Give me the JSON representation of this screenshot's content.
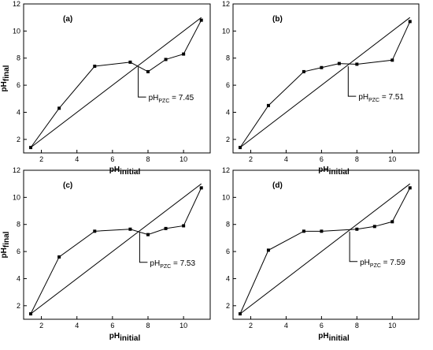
{
  "chart_data": [
    {
      "type": "line",
      "panel_label": "(a)",
      "xlabel": "pH",
      "xlabel_sub": "initial",
      "ylabel": "pH",
      "ylabel_sub": "final",
      "xlim": [
        1,
        11.5
      ],
      "ylim": [
        1,
        12
      ],
      "xticks": [
        "2",
        "4",
        "6",
        "8",
        "10"
      ],
      "yticks": [
        "2",
        "4",
        "6",
        "8",
        "10",
        "12"
      ],
      "series": [
        {
          "x": [
            1.4,
            3.0,
            5.0,
            7.0,
            8.0,
            9.0,
            10.0,
            11.0
          ],
          "y": [
            1.4,
            4.3,
            7.4,
            7.7,
            7.0,
            7.9,
            8.3,
            10.8
          ]
        }
      ],
      "reference_line": {
        "x": [
          1.4,
          11.0
        ],
        "y": [
          1.4,
          11.0
        ]
      },
      "annotation": {
        "prefix": "pH",
        "sub": "PZC",
        "suffix": " = 7.45",
        "x": 7.45,
        "y": 7.45
      }
    },
    {
      "type": "line",
      "panel_label": "(b)",
      "xlabel": "pH",
      "xlabel_sub": "initial",
      "ylabel": "",
      "ylabel_sub": "",
      "xlim": [
        1,
        11.5
      ],
      "ylim": [
        1,
        12
      ],
      "xticks": [
        "2",
        "4",
        "6",
        "8",
        "10"
      ],
      "yticks": [
        "2",
        "4",
        "6",
        "8",
        "10",
        "12"
      ],
      "series": [
        {
          "x": [
            1.4,
            3.0,
            5.0,
            6.0,
            7.0,
            8.0,
            10.0,
            11.0
          ],
          "y": [
            1.4,
            4.5,
            7.0,
            7.3,
            7.6,
            7.55,
            7.85,
            10.7
          ]
        }
      ],
      "reference_line": {
        "x": [
          1.4,
          11.0
        ],
        "y": [
          1.4,
          11.0
        ]
      },
      "annotation": {
        "prefix": "pH",
        "sub": "PZC",
        "suffix": " = 7.51",
        "x": 7.51,
        "y": 7.51
      }
    },
    {
      "type": "line",
      "panel_label": "(c)",
      "xlabel": "pH",
      "xlabel_sub": "initial",
      "ylabel": "pH",
      "ylabel_sub": "final",
      "xlim": [
        1,
        11.5
      ],
      "ylim": [
        1,
        12
      ],
      "xticks": [
        "2",
        "4",
        "6",
        "8",
        "10"
      ],
      "yticks": [
        "2",
        "4",
        "6",
        "8",
        "10",
        "12"
      ],
      "series": [
        {
          "x": [
            1.4,
            3.0,
            5.0,
            7.0,
            8.0,
            9.0,
            10.0,
            11.0
          ],
          "y": [
            1.4,
            5.6,
            7.5,
            7.65,
            7.25,
            7.7,
            7.9,
            10.7
          ]
        }
      ],
      "reference_line": {
        "x": [
          1.4,
          11.0
        ],
        "y": [
          1.4,
          11.0
        ]
      },
      "annotation": {
        "prefix": "pH",
        "sub": "PZC",
        "suffix": " = 7.53",
        "x": 7.53,
        "y": 7.53
      }
    },
    {
      "type": "line",
      "panel_label": "(d)",
      "xlabel": "pH",
      "xlabel_sub": "initial",
      "ylabel": "",
      "ylabel_sub": "",
      "xlim": [
        1,
        11.5
      ],
      "ylim": [
        1,
        12
      ],
      "xticks": [
        "2",
        "4",
        "6",
        "8",
        "10"
      ],
      "yticks": [
        "2",
        "4",
        "6",
        "8",
        "10",
        "12"
      ],
      "series": [
        {
          "x": [
            1.4,
            3.0,
            5.0,
            6.0,
            8.0,
            9.0,
            10.0,
            11.0
          ],
          "y": [
            1.4,
            6.1,
            7.5,
            7.5,
            7.65,
            7.85,
            8.2,
            10.7
          ]
        }
      ],
      "reference_line": {
        "x": [
          1.4,
          11.0
        ],
        "y": [
          1.4,
          11.0
        ]
      },
      "annotation": {
        "prefix": "pH",
        "sub": "PZC",
        "suffix": " = 7.59",
        "x": 7.59,
        "y": 7.59
      }
    }
  ]
}
